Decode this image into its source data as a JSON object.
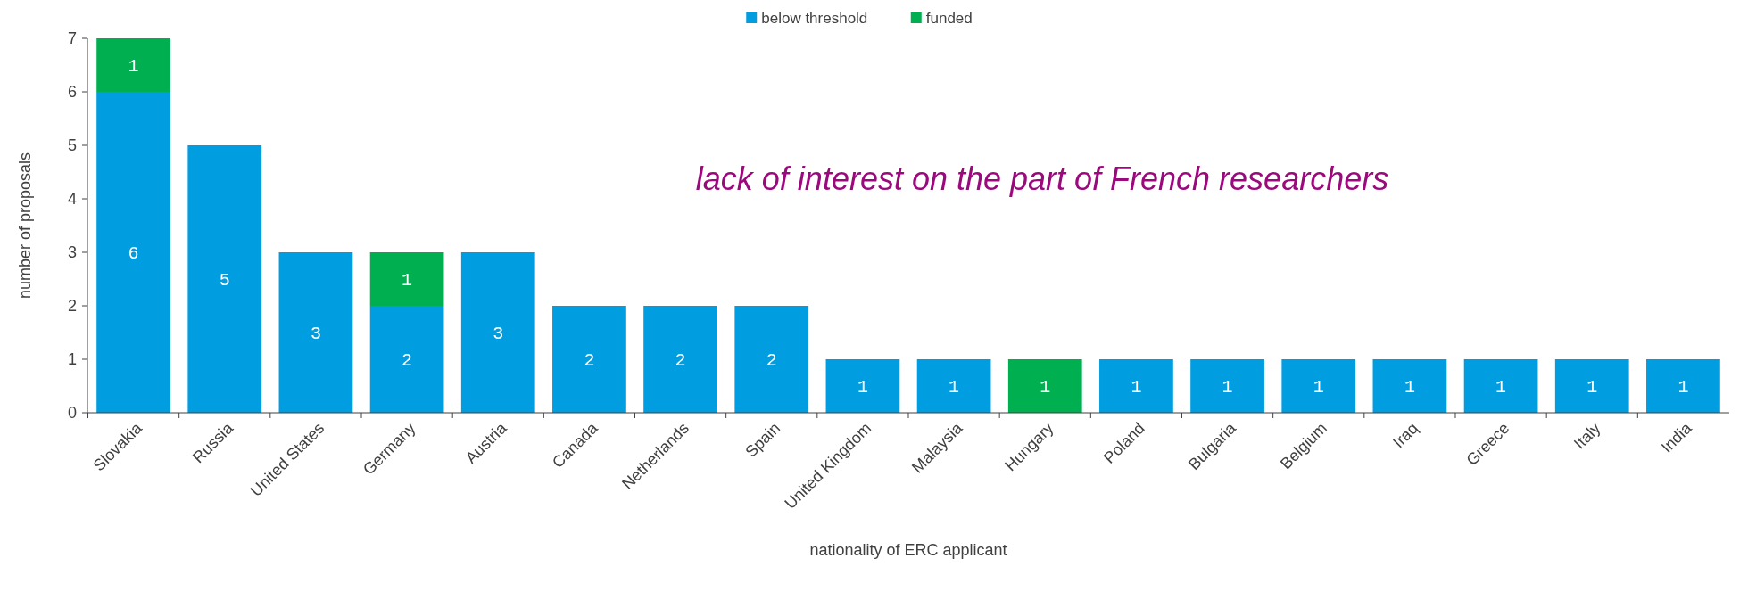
{
  "chart_data": {
    "type": "bar",
    "stacked": true,
    "xlabel": "nationality of ERC applicant",
    "ylabel": "number of proposals",
    "categories": [
      "Slovakia",
      "Russia",
      "United States",
      "Germany",
      "Austria",
      "Canada",
      "Netherlands",
      "Spain",
      "United Kingdom",
      "Malaysia",
      "Hungary",
      "Poland",
      "Bulgaria",
      "Belgium",
      "Iraq",
      "Greece",
      "Italy",
      "India"
    ],
    "series": [
      {
        "name": "below threshold",
        "color": "#009ee0",
        "values": [
          6,
          5,
          3,
          2,
          3,
          2,
          2,
          2,
          1,
          1,
          null,
          1,
          1,
          1,
          1,
          1,
          1,
          1
        ]
      },
      {
        "name": "funded",
        "color": "#00b050",
        "values": [
          1,
          null,
          null,
          1,
          null,
          null,
          null,
          null,
          null,
          null,
          1,
          null,
          null,
          null,
          null,
          null,
          null,
          null
        ]
      }
    ],
    "ylim": [
      0,
      7
    ],
    "yticks": [
      0,
      1,
      2,
      3,
      4,
      5,
      6,
      7
    ],
    "grid": false,
    "legend": "top",
    "data_labels": true,
    "annotations": [
      "lack of interest on the part of French researchers"
    ]
  }
}
